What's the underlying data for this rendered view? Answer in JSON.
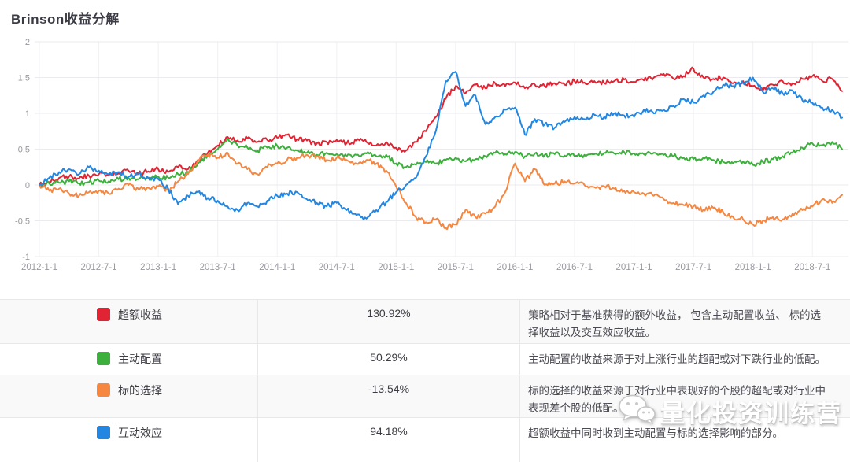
{
  "page": {
    "title": "Brinson收益分解"
  },
  "chart_data": {
    "type": "line",
    "title": "Brinson收益分解",
    "grid": true,
    "legend_position": "table-below",
    "ylim": [
      -1,
      2
    ],
    "y_ticks": [
      "2",
      "1.5",
      "1",
      "0.5",
      "0",
      "-0.5",
      "-1"
    ],
    "y_tick_values": [
      2,
      1.5,
      1,
      0.5,
      0,
      -0.5,
      -1
    ],
    "x_ticks": [
      "2012-1-1",
      "2012-7-1",
      "2013-1-1",
      "2013-7-1",
      "2014-1-1",
      "2014-7-1",
      "2015-1-1",
      "2015-7-1",
      "2016-1-1",
      "2016-7-1",
      "2017-1-1",
      "2017-7-1",
      "2018-1-1",
      "2018-7-1"
    ],
    "x_tick_indices": [
      0,
      6,
      12,
      18,
      24,
      30,
      36,
      42,
      48,
      54,
      60,
      66,
      72,
      78
    ],
    "x": [
      "2012-01",
      "2012-02",
      "2012-03",
      "2012-04",
      "2012-05",
      "2012-06",
      "2012-07",
      "2012-08",
      "2012-09",
      "2012-10",
      "2012-11",
      "2012-12",
      "2013-01",
      "2013-02",
      "2013-03",
      "2013-04",
      "2013-05",
      "2013-06",
      "2013-07",
      "2013-08",
      "2013-09",
      "2013-10",
      "2013-11",
      "2013-12",
      "2014-01",
      "2014-02",
      "2014-03",
      "2014-04",
      "2014-05",
      "2014-06",
      "2014-07",
      "2014-08",
      "2014-09",
      "2014-10",
      "2014-11",
      "2014-12",
      "2015-01",
      "2015-02",
      "2015-03",
      "2015-04",
      "2015-05",
      "2015-06",
      "2015-07",
      "2015-08",
      "2015-09",
      "2015-10",
      "2015-11",
      "2015-12",
      "2016-01",
      "2016-02",
      "2016-03",
      "2016-04",
      "2016-05",
      "2016-06",
      "2016-07",
      "2016-08",
      "2016-09",
      "2016-10",
      "2016-11",
      "2016-12",
      "2017-01",
      "2017-02",
      "2017-03",
      "2017-04",
      "2017-05",
      "2017-06",
      "2017-07",
      "2017-08",
      "2017-09",
      "2017-10",
      "2017-11",
      "2017-12",
      "2018-01",
      "2018-02",
      "2018-03",
      "2018-04",
      "2018-05",
      "2018-06",
      "2018-07",
      "2018-08",
      "2018-09",
      "2018-10"
    ],
    "series": [
      {
        "name": "超额收益",
        "color": "#e12433",
        "values": [
          0.0,
          0.04,
          0.1,
          0.12,
          0.09,
          0.13,
          0.15,
          0.13,
          0.16,
          0.2,
          0.16,
          0.19,
          0.22,
          0.18,
          0.25,
          0.22,
          0.35,
          0.45,
          0.55,
          0.67,
          0.62,
          0.65,
          0.6,
          0.63,
          0.66,
          0.7,
          0.64,
          0.62,
          0.58,
          0.6,
          0.63,
          0.58,
          0.62,
          0.6,
          0.55,
          0.6,
          0.52,
          0.48,
          0.6,
          0.75,
          0.95,
          1.2,
          1.38,
          1.28,
          1.4,
          1.35,
          1.42,
          1.38,
          1.43,
          1.35,
          1.4,
          1.38,
          1.42,
          1.4,
          1.45,
          1.43,
          1.45,
          1.42,
          1.45,
          1.47,
          1.44,
          1.46,
          1.5,
          1.55,
          1.48,
          1.52,
          1.62,
          1.5,
          1.48,
          1.5,
          1.42,
          1.45,
          1.38,
          1.32,
          1.4,
          1.45,
          1.42,
          1.48,
          1.52,
          1.45,
          1.48,
          1.31
        ]
      },
      {
        "name": "主动配置",
        "color": "#3caf3c",
        "values": [
          0.0,
          0.02,
          0.03,
          0.05,
          0.02,
          0.04,
          0.06,
          0.05,
          0.08,
          0.1,
          0.08,
          0.1,
          0.12,
          0.1,
          0.15,
          0.18,
          0.3,
          0.42,
          0.5,
          0.65,
          0.55,
          0.52,
          0.48,
          0.52,
          0.55,
          0.52,
          0.48,
          0.45,
          0.42,
          0.45,
          0.43,
          0.4,
          0.42,
          0.44,
          0.4,
          0.42,
          0.3,
          0.25,
          0.28,
          0.32,
          0.3,
          0.35,
          0.38,
          0.33,
          0.36,
          0.4,
          0.45,
          0.43,
          0.46,
          0.4,
          0.44,
          0.42,
          0.43,
          0.41,
          0.4,
          0.42,
          0.43,
          0.45,
          0.44,
          0.46,
          0.44,
          0.43,
          0.45,
          0.42,
          0.4,
          0.38,
          0.36,
          0.38,
          0.35,
          0.32,
          0.3,
          0.33,
          0.28,
          0.32,
          0.36,
          0.4,
          0.45,
          0.52,
          0.58,
          0.55,
          0.6,
          0.5
        ]
      },
      {
        "name": "标的选择",
        "color": "#f58741",
        "values": [
          0.0,
          -0.08,
          -0.05,
          -0.12,
          -0.15,
          -0.1,
          -0.08,
          -0.12,
          -0.05,
          0.0,
          -0.06,
          -0.04,
          -0.02,
          -0.08,
          0.05,
          0.15,
          0.35,
          0.42,
          0.38,
          0.45,
          0.3,
          0.22,
          0.15,
          0.25,
          0.3,
          0.35,
          0.38,
          0.42,
          0.4,
          0.35,
          0.38,
          0.35,
          0.3,
          0.35,
          0.3,
          0.2,
          -0.02,
          -0.25,
          -0.45,
          -0.52,
          -0.48,
          -0.6,
          -0.55,
          -0.35,
          -0.45,
          -0.4,
          -0.3,
          -0.1,
          0.3,
          0.05,
          0.22,
          0.0,
          0.02,
          0.05,
          0.02,
          0.0,
          -0.03,
          -0.02,
          -0.05,
          -0.08,
          -0.1,
          -0.12,
          -0.15,
          -0.2,
          -0.25,
          -0.28,
          -0.3,
          -0.35,
          -0.32,
          -0.38,
          -0.45,
          -0.48,
          -0.55,
          -0.5,
          -0.45,
          -0.48,
          -0.4,
          -0.35,
          -0.3,
          -0.2,
          -0.25,
          -0.14
        ]
      },
      {
        "name": "互动效应",
        "color": "#2387e1",
        "values": [
          0.0,
          0.1,
          0.18,
          0.22,
          0.15,
          0.25,
          0.2,
          0.15,
          0.18,
          0.12,
          0.15,
          0.1,
          0.08,
          -0.05,
          -0.27,
          -0.15,
          -0.1,
          -0.18,
          -0.22,
          -0.3,
          -0.35,
          -0.25,
          -0.3,
          -0.22,
          -0.15,
          -0.12,
          -0.1,
          -0.2,
          -0.25,
          -0.3,
          -0.25,
          -0.35,
          -0.42,
          -0.47,
          -0.35,
          -0.24,
          -0.1,
          0.0,
          0.1,
          0.4,
          0.75,
          1.45,
          1.58,
          1.1,
          1.25,
          0.85,
          0.95,
          1.05,
          1.08,
          0.7,
          0.92,
          0.85,
          0.8,
          0.88,
          0.95,
          0.92,
          0.98,
          0.95,
          1.0,
          0.97,
          0.95,
          1.05,
          1.0,
          1.05,
          1.1,
          1.2,
          1.15,
          1.25,
          1.3,
          1.4,
          1.38,
          1.42,
          1.5,
          1.3,
          1.35,
          1.28,
          1.32,
          1.18,
          1.15,
          1.08,
          1.05,
          0.94
        ]
      }
    ]
  },
  "table": {
    "rows": [
      {
        "label": "超额收益",
        "color": "#e12433",
        "value": "130.92%",
        "desc": "策略相对于基准获得的额外收益， 包含主动配置收益、 标的选择收益以及交互效应收益。"
      },
      {
        "label": "主动配置",
        "color": "#3caf3c",
        "value": "50.29%",
        "desc": "主动配置的收益来源于对上涨行业的超配或对下跌行业的低配。"
      },
      {
        "label": "标的选择",
        "color": "#f58741",
        "value": "-13.54%",
        "desc": "标的选择的收益来源于对行业中表现好的个股的超配或对行业中表现差个股的低配。"
      },
      {
        "label": "互动效应",
        "color": "#2387e1",
        "value": "94.18%",
        "desc": "超额收益中同时收到主动配置与标的选择影响的部分。"
      }
    ]
  },
  "watermark": {
    "text": "量化投资训练营",
    "icon": "wechat-icon"
  }
}
